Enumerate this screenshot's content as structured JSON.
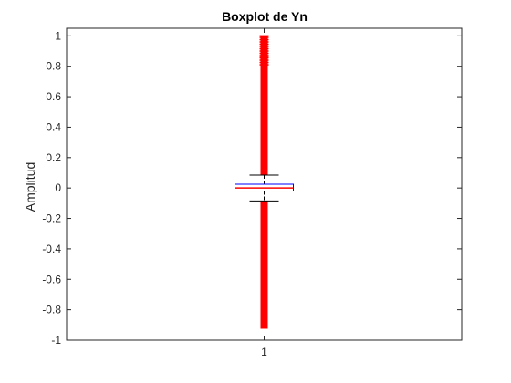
{
  "chart_data": {
    "type": "box",
    "title": "Boxplot de Yn",
    "xlabel": "",
    "ylabel": "Amplitud",
    "categories": [
      "1"
    ],
    "xlim": [
      0.5,
      1.5
    ],
    "ylim": [
      -1.0,
      1.05
    ],
    "yticks": [
      -1,
      -0.8,
      -0.6,
      -0.4,
      -0.2,
      0,
      0.2,
      0.4,
      0.6,
      0.8,
      1
    ],
    "ytick_labels": [
      "-1",
      "-0.8",
      "-0.6",
      "-0.4",
      "-0.2",
      "0",
      "0.2",
      "0.4",
      "0.6",
      "0.8",
      "1"
    ],
    "grid": false,
    "box": {
      "q1": -0.02,
      "median": 0.0,
      "q3": 0.025,
      "whisker_low": -0.085,
      "whisker_high": 0.085,
      "outliers_low_range": [
        -0.925,
        -0.085
      ],
      "outliers_high_range": [
        0.085,
        1.0
      ]
    },
    "colors": {
      "box": "#0000ff",
      "median": "#ff0000",
      "whisker": "#000000",
      "outlier": "#ff0000",
      "axes": "#262626"
    }
  }
}
